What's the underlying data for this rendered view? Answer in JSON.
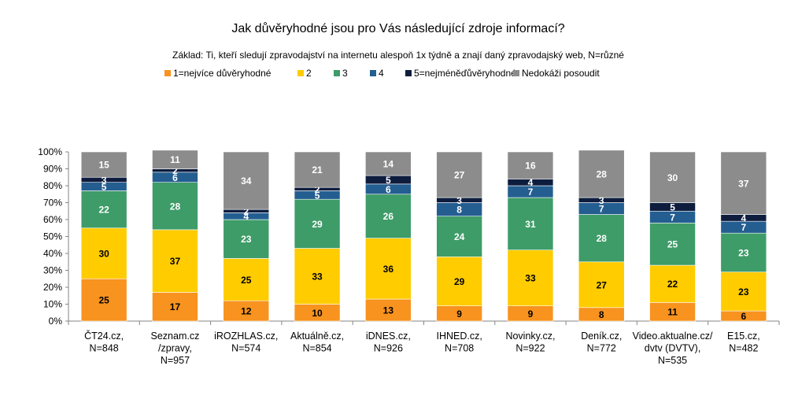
{
  "chart_data": {
    "type": "bar",
    "stacked": true,
    "title": "Jak důvěryhodné jsou pro Vás následující zdroje informací?",
    "subtitle": "Základ: Ti, kteří sledují zpravodajství na internetu alespoň 1x týdně a znají daný zpravodajský web, N=různé",
    "legend_position": "top",
    "ylim": [
      0,
      100
    ],
    "y_ticks": [
      "0%",
      "10%",
      "20%",
      "30%",
      "40%",
      "50%",
      "60%",
      "70%",
      "80%",
      "90%",
      "100%"
    ],
    "categories": [
      [
        "ČT24.cz,",
        "N=848"
      ],
      [
        "Seznam.cz",
        "/zpravy,",
        "N=957"
      ],
      [
        "iROZHLAS.cz,",
        "N=574"
      ],
      [
        "Aktuálně.cz,",
        "N=854"
      ],
      [
        "iDNES.cz,",
        "N=926"
      ],
      [
        "IHNED.cz,",
        "N=708"
      ],
      [
        "Novinky.cz,",
        "N=922"
      ],
      [
        "Deník.cz,",
        "N=772"
      ],
      [
        "Video.aktualne.cz/",
        "dvtv (DVTV),",
        "N=535"
      ],
      [
        "E15.cz,",
        "N=482"
      ]
    ],
    "series": [
      {
        "name": "1=nejvíce důvěryhodné",
        "color": "#F7931E",
        "label_color": "#000000",
        "values": [
          25,
          17,
          12,
          10,
          13,
          9,
          9,
          8,
          11,
          6
        ]
      },
      {
        "name": "2",
        "color": "#FFCC00",
        "label_color": "#000000",
        "values": [
          30,
          37,
          25,
          33,
          36,
          29,
          33,
          27,
          22,
          23
        ]
      },
      {
        "name": "3",
        "color": "#3E9C68",
        "label_color": "#ffffff",
        "values": [
          22,
          28,
          23,
          29,
          26,
          24,
          31,
          28,
          25,
          23
        ]
      },
      {
        "name": "4",
        "color": "#245E91",
        "label_color": "#ffffff",
        "values": [
          5,
          6,
          4,
          5,
          6,
          8,
          7,
          7,
          7,
          7
        ]
      },
      {
        "name": "5=nejméněďůvěryhodné",
        "color": "#0E1D3E",
        "label_color": "#ffffff",
        "values": [
          3,
          2,
          2,
          2,
          5,
          3,
          4,
          3,
          5,
          4
        ]
      },
      {
        "name": "Nedokáži posoudit",
        "color": "#8C8C8C",
        "label_color": "#ffffff",
        "values": [
          15,
          11,
          34,
          21,
          14,
          27,
          16,
          28,
          30,
          37
        ]
      }
    ]
  }
}
